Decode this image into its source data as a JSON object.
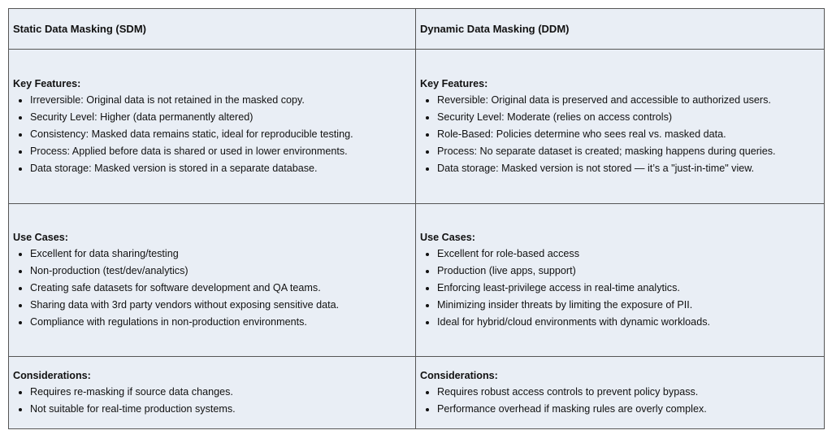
{
  "columns": [
    "Static Data Masking (SDM)",
    "Dynamic Data Masking (DDM)"
  ],
  "rows": [
    {
      "sdm": {
        "heading": "Key Features:",
        "items": [
          "Irreversible: Original data is not retained in the masked copy.",
          "Security Level: Higher (data permanently altered)",
          "Consistency: Masked data remains static, ideal for reproducible testing.",
          "Process: Applied before data is shared or used in lower environments.",
          "Data storage: Masked version is stored in a separate database."
        ]
      },
      "ddm": {
        "heading": "Key Features:",
        "items": [
          "Reversible: Original data is preserved and accessible to authorized users.",
          "Security Level: Moderate (relies on access controls)",
          "Role-Based: Policies determine who sees real vs. masked data.",
          "Process: No separate dataset is created; masking happens during queries.",
          "Data storage: Masked version is not stored — it’s a \"just-in-time\" view."
        ]
      }
    },
    {
      "sdm": {
        "heading": "Use Cases:",
        "items": [
          "Excellent for data sharing/testing",
          "Non-production (test/dev/analytics)",
          "Creating safe datasets for software development and QA teams.",
          "Sharing data with 3rd party vendors without exposing sensitive data.",
          "Compliance with regulations in non-production environments."
        ]
      },
      "ddm": {
        "heading": "Use Cases:",
        "items": [
          "Excellent for role-based access",
          "Production (live apps, support)",
          "Enforcing least-privilege access in real-time analytics.",
          "Minimizing insider threats by limiting the exposure of PII.",
          "Ideal for hybrid/cloud environments with dynamic workloads."
        ]
      }
    },
    {
      "sdm": {
        "heading": "Considerations:",
        "items": [
          "Requires re-masking if source data changes.",
          "Not suitable for real-time production systems."
        ]
      },
      "ddm": {
        "heading": "Considerations:",
        "items": [
          "Requires robust access controls to prevent policy bypass.",
          "Performance overhead if masking rules are overly complex."
        ]
      }
    }
  ]
}
